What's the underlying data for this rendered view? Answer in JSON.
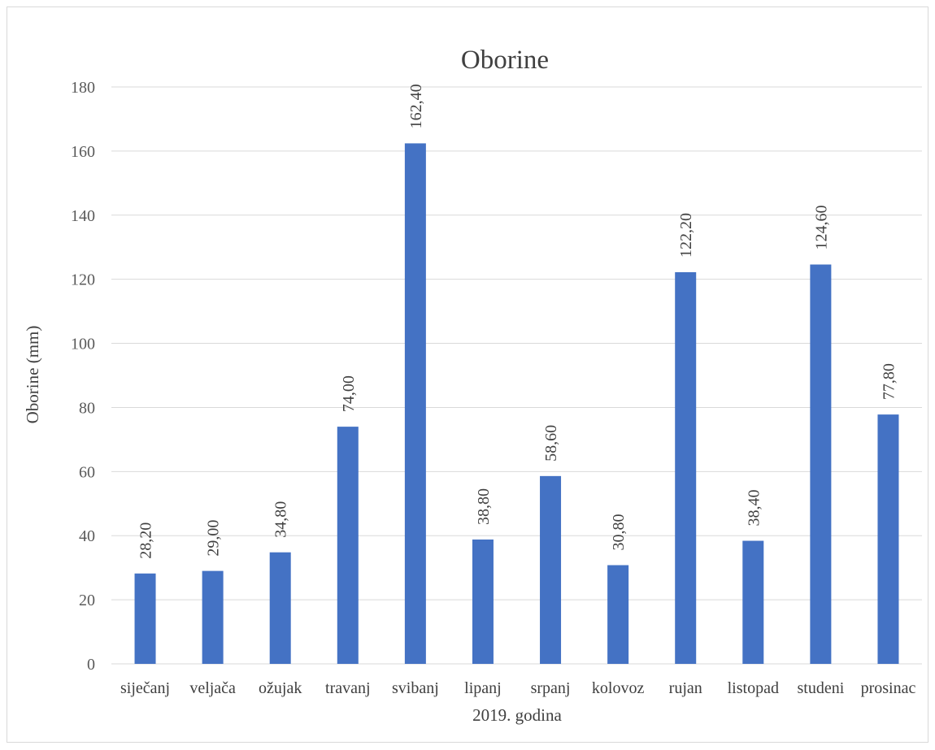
{
  "chart_data": {
    "type": "bar",
    "title": "Oborine",
    "xlabel": "2019. godina",
    "ylabel": "Oborine (mm)",
    "ylim": [
      0,
      180
    ],
    "yticks": [
      "0",
      "20",
      "40",
      "60",
      "80",
      "100",
      "120",
      "140",
      "160",
      "180"
    ],
    "grid": true,
    "legend": "none",
    "bar_color": "#4472c4",
    "categories": [
      "siječanj",
      "veljača",
      "ožujak",
      "travanj",
      "svibanj",
      "lipanj",
      "srpanj",
      "kolovoz",
      "rujan",
      "listopad",
      "studeni",
      "prosinac"
    ],
    "values": [
      28.2,
      29.0,
      34.8,
      74.0,
      162.4,
      38.8,
      58.6,
      30.8,
      122.2,
      38.4,
      124.6,
      77.8
    ],
    "data_labels": [
      "28,20",
      "29,00",
      "34,80",
      "74,00",
      "162,40",
      "38,80",
      "58,60",
      "30,80",
      "122,20",
      "38,40",
      "124,60",
      "77,80"
    ]
  }
}
